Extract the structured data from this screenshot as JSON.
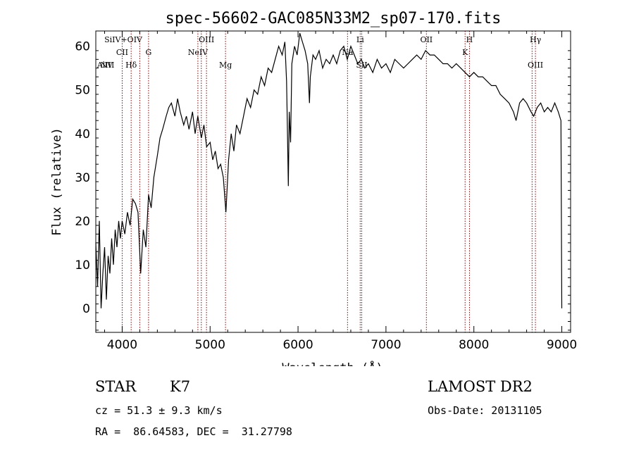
{
  "chart_data": {
    "type": "line",
    "title": "spec-56602-GAC085N33M2_sp07-170.fits",
    "xlabel": "Wavelength (Å)",
    "ylabel": "Flux (relative)",
    "xlim": [
      3700,
      9100
    ],
    "ylim": [
      -5.5,
      63.5
    ],
    "xticks": [
      4000,
      5000,
      6000,
      7000,
      8000,
      9000
    ],
    "yticks": [
      0,
      10,
      20,
      30,
      40,
      50,
      60
    ],
    "grid": false,
    "series": [
      {
        "color": "#000000",
        "points": [
          [
            3700,
            15
          ],
          [
            3720,
            5
          ],
          [
            3740,
            20
          ],
          [
            3760,
            0
          ],
          [
            3780,
            8
          ],
          [
            3800,
            14
          ],
          [
            3820,
            2
          ],
          [
            3840,
            12
          ],
          [
            3860,
            8
          ],
          [
            3880,
            16
          ],
          [
            3900,
            10
          ],
          [
            3920,
            18
          ],
          [
            3940,
            14
          ],
          [
            3960,
            20
          ],
          [
            3980,
            16
          ],
          [
            4000,
            20
          ],
          [
            4030,
            17
          ],
          [
            4060,
            22
          ],
          [
            4090,
            19
          ],
          [
            4120,
            25
          ],
          [
            4150,
            24
          ],
          [
            4180,
            22
          ],
          [
            4210,
            8
          ],
          [
            4240,
            18
          ],
          [
            4270,
            14
          ],
          [
            4300,
            26
          ],
          [
            4330,
            23
          ],
          [
            4360,
            30
          ],
          [
            4400,
            35
          ],
          [
            4430,
            39
          ],
          [
            4460,
            41
          ],
          [
            4500,
            44
          ],
          [
            4530,
            46
          ],
          [
            4560,
            47
          ],
          [
            4600,
            44
          ],
          [
            4630,
            48
          ],
          [
            4660,
            45
          ],
          [
            4700,
            42
          ],
          [
            4730,
            44
          ],
          [
            4760,
            41
          ],
          [
            4800,
            45
          ],
          [
            4830,
            40
          ],
          [
            4860,
            44
          ],
          [
            4900,
            39
          ],
          [
            4930,
            42
          ],
          [
            4960,
            37
          ],
          [
            5000,
            38
          ],
          [
            5030,
            34
          ],
          [
            5060,
            36
          ],
          [
            5090,
            32
          ],
          [
            5120,
            33
          ],
          [
            5150,
            30
          ],
          [
            5180,
            22
          ],
          [
            5210,
            34
          ],
          [
            5240,
            40
          ],
          [
            5270,
            36
          ],
          [
            5300,
            42
          ],
          [
            5340,
            40
          ],
          [
            5380,
            44
          ],
          [
            5420,
            48
          ],
          [
            5460,
            46
          ],
          [
            5500,
            50
          ],
          [
            5540,
            49
          ],
          [
            5580,
            53
          ],
          [
            5620,
            51
          ],
          [
            5660,
            55
          ],
          [
            5700,
            54
          ],
          [
            5740,
            57
          ],
          [
            5780,
            60
          ],
          [
            5820,
            58
          ],
          [
            5850,
            61
          ],
          [
            5870,
            52
          ],
          [
            5880,
            40
          ],
          [
            5890,
            28
          ],
          [
            5900,
            45
          ],
          [
            5915,
            38
          ],
          [
            5930,
            56
          ],
          [
            5960,
            60
          ],
          [
            5990,
            58
          ],
          [
            6020,
            63
          ],
          [
            6050,
            61
          ],
          [
            6080,
            59
          ],
          [
            6110,
            56
          ],
          [
            6130,
            47
          ],
          [
            6140,
            53
          ],
          [
            6170,
            58
          ],
          [
            6200,
            57
          ],
          [
            6240,
            59
          ],
          [
            6280,
            55
          ],
          [
            6320,
            57
          ],
          [
            6360,
            56
          ],
          [
            6400,
            58
          ],
          [
            6440,
            56
          ],
          [
            6480,
            59
          ],
          [
            6520,
            60
          ],
          [
            6560,
            57
          ],
          [
            6600,
            60
          ],
          [
            6640,
            58
          ],
          [
            6680,
            56
          ],
          [
            6720,
            57
          ],
          [
            6760,
            55
          ],
          [
            6800,
            56
          ],
          [
            6850,
            54
          ],
          [
            6900,
            57
          ],
          [
            6950,
            55
          ],
          [
            7000,
            56
          ],
          [
            7050,
            54
          ],
          [
            7100,
            57
          ],
          [
            7150,
            56
          ],
          [
            7200,
            55
          ],
          [
            7250,
            56
          ],
          [
            7300,
            57
          ],
          [
            7350,
            58
          ],
          [
            7400,
            57
          ],
          [
            7450,
            59
          ],
          [
            7500,
            58
          ],
          [
            7550,
            58
          ],
          [
            7600,
            57
          ],
          [
            7650,
            56
          ],
          [
            7700,
            56
          ],
          [
            7750,
            55
          ],
          [
            7800,
            56
          ],
          [
            7850,
            55
          ],
          [
            7900,
            54
          ],
          [
            7950,
            53
          ],
          [
            8000,
            54
          ],
          [
            8050,
            53
          ],
          [
            8100,
            53
          ],
          [
            8150,
            52
          ],
          [
            8200,
            51
          ],
          [
            8250,
            51
          ],
          [
            8300,
            49
          ],
          [
            8350,
            48
          ],
          [
            8400,
            47
          ],
          [
            8450,
            45
          ],
          [
            8480,
            43
          ],
          [
            8520,
            47
          ],
          [
            8560,
            48
          ],
          [
            8600,
            47
          ],
          [
            8650,
            45
          ],
          [
            8680,
            44
          ],
          [
            8720,
            46
          ],
          [
            8760,
            47
          ],
          [
            8800,
            45
          ],
          [
            8840,
            46
          ],
          [
            8880,
            45
          ],
          [
            8920,
            47
          ],
          [
            8960,
            45
          ],
          [
            8990,
            43
          ],
          [
            9000,
            0
          ]
        ]
      }
    ],
    "line_labels": [
      {
        "text": "AlIII",
        "wl": 3813,
        "row": 3
      },
      {
        "text": "NV",
        "wl": 3822,
        "row": 3
      },
      {
        "text": "SiIV+OIV",
        "wl": 4013,
        "row": 1
      },
      {
        "text": "CII",
        "wl": 4000,
        "row": 2
      },
      {
        "text": "Hδ",
        "wl": 4102,
        "row": 3
      },
      {
        "text": "G",
        "wl": 4300,
        "row": 2
      },
      {
        "text": "OIII",
        "wl": 4959,
        "row": 1
      },
      {
        "text": "NeIV",
        "wl": 4861,
        "row": 2
      },
      {
        "text": "Mg",
        "wl": 5175,
        "row": 3
      },
      {
        "text": "Li",
        "wl": 6707,
        "row": 1
      },
      {
        "text": "Na",
        "wl": 6563,
        "row": 2
      },
      {
        "text": "SII",
        "wl": 6724,
        "row": 3
      },
      {
        "text": "OII",
        "wl": 7460,
        "row": 1
      },
      {
        "text": "H",
        "wl": 7950,
        "row": 1
      },
      {
        "text": "K",
        "wl": 7900,
        "row": 2
      },
      {
        "text": "Hγ",
        "wl": 8700,
        "row": 1
      },
      {
        "text": "OIII",
        "wl": 8700,
        "row": 3
      }
    ],
    "line_markers": [
      4000,
      4102,
      4200,
      4300,
      4861,
      4900,
      4959,
      5175,
      6563,
      6707,
      6724,
      7460,
      7900,
      7950,
      8662,
      8700
    ],
    "marker_color": "#8b0000"
  },
  "info": {
    "class": "STAR",
    "subclass": "K7",
    "survey": "LAMOST DR2",
    "cz": "cz = 51.3 ± 9.3 km/s",
    "obs_date": "Obs-Date: 20131105",
    "coords": "RA =  86.64583, DEC =  31.27798"
  }
}
